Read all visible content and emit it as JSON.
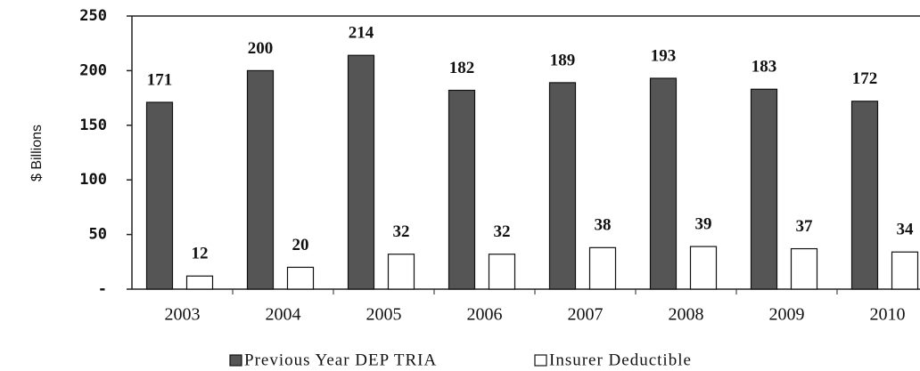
{
  "chart_data": {
    "type": "bar",
    "y_label": "$ Billions",
    "categories": [
      "2003",
      "2004",
      "2005",
      "2006",
      "2007",
      "2008",
      "2009",
      "2010"
    ],
    "series": [
      {
        "name": "Previous Year DEP TRIA",
        "color": "#555555",
        "values": [
          171,
          200,
          214,
          182,
          189,
          193,
          183,
          172
        ]
      },
      {
        "name": "Insurer Deductible",
        "color": "#ffffff",
        "values": [
          12,
          20,
          32,
          32,
          38,
          39,
          37,
          34
        ]
      }
    ],
    "ylim": [
      0,
      250
    ],
    "yticks": [
      {
        "value": 0,
        "label": "-"
      },
      50,
      100,
      150,
      200,
      250
    ]
  }
}
